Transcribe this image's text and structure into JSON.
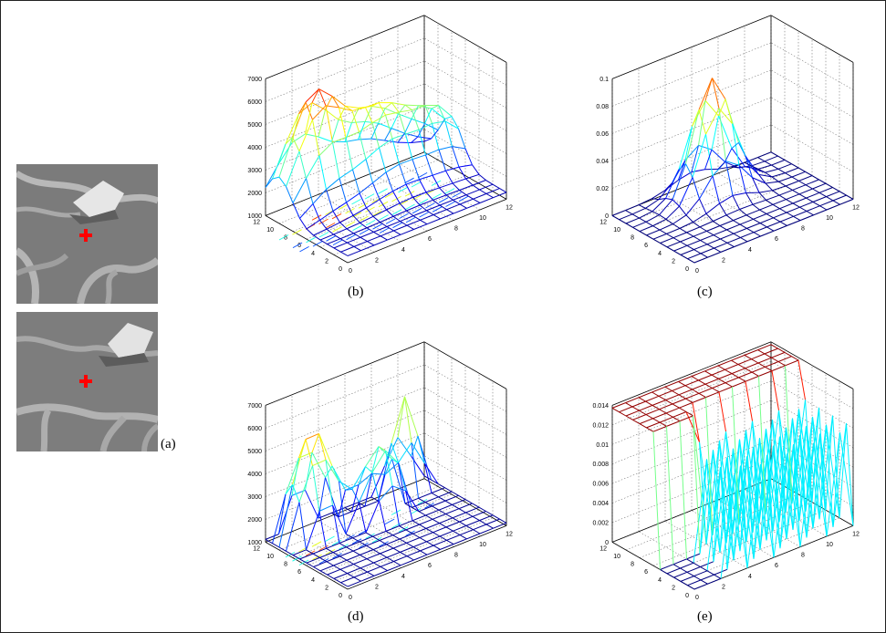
{
  "captions": {
    "a": "(a)",
    "b": "(b)",
    "c": "(c)",
    "d": "(d)",
    "e": "(e)"
  },
  "images": {
    "top": {
      "marker": "red-cross",
      "marker_color": "#ff0000"
    },
    "bottom": {
      "marker": "red-cross",
      "marker_color": "#ff0000"
    }
  },
  "chart_data": [
    {
      "id": "b",
      "type": "surface",
      "zticks": [
        "1000",
        "2000",
        "3000",
        "4000",
        "5000",
        "6000",
        "7000"
      ],
      "zlim": [
        1000,
        7000
      ],
      "xticks": [
        "0",
        "2",
        "4",
        "6",
        "8",
        "10",
        "12"
      ],
      "yticks": [
        "0",
        "2",
        "4",
        "6",
        "8",
        "10",
        "12"
      ],
      "grid": true,
      "colormap": "jet",
      "contour_below": true
    },
    {
      "id": "c",
      "type": "surface",
      "zticks": [
        "0",
        "0.02",
        "0.04",
        "0.06",
        "0.08",
        "0.1"
      ],
      "zlim": [
        0,
        0.1
      ],
      "xticks": [
        "0",
        "2",
        "4",
        "6",
        "8",
        "10",
        "12"
      ],
      "yticks": [
        "0",
        "2",
        "4",
        "6",
        "8",
        "10",
        "12"
      ],
      "grid": true,
      "colormap": "jet",
      "contour_below": false
    },
    {
      "id": "d",
      "type": "surface",
      "zticks": [
        "1000",
        "2000",
        "3000",
        "4000",
        "5000",
        "6000",
        "7000"
      ],
      "zlim": [
        1000,
        7000
      ],
      "xticks": [
        "0",
        "2",
        "4",
        "6",
        "8",
        "10",
        "12"
      ],
      "yticks": [
        "0",
        "2",
        "4",
        "6",
        "8",
        "10",
        "12"
      ],
      "grid": true,
      "colormap": "jet",
      "contour_below": true
    },
    {
      "id": "e",
      "type": "surface",
      "zticks": [
        "0",
        "0.002",
        "0.004",
        "0.006",
        "0.008",
        "0.01",
        "0.012",
        "0.014"
      ],
      "zlim": [
        0,
        0.014
      ],
      "xticks": [
        "0",
        "2",
        "4",
        "6",
        "8",
        "10",
        "12"
      ],
      "yticks": [
        "0",
        "2",
        "4",
        "6",
        "8",
        "10",
        "12"
      ],
      "grid": true,
      "colormap": "jet",
      "contour_below": true
    }
  ]
}
